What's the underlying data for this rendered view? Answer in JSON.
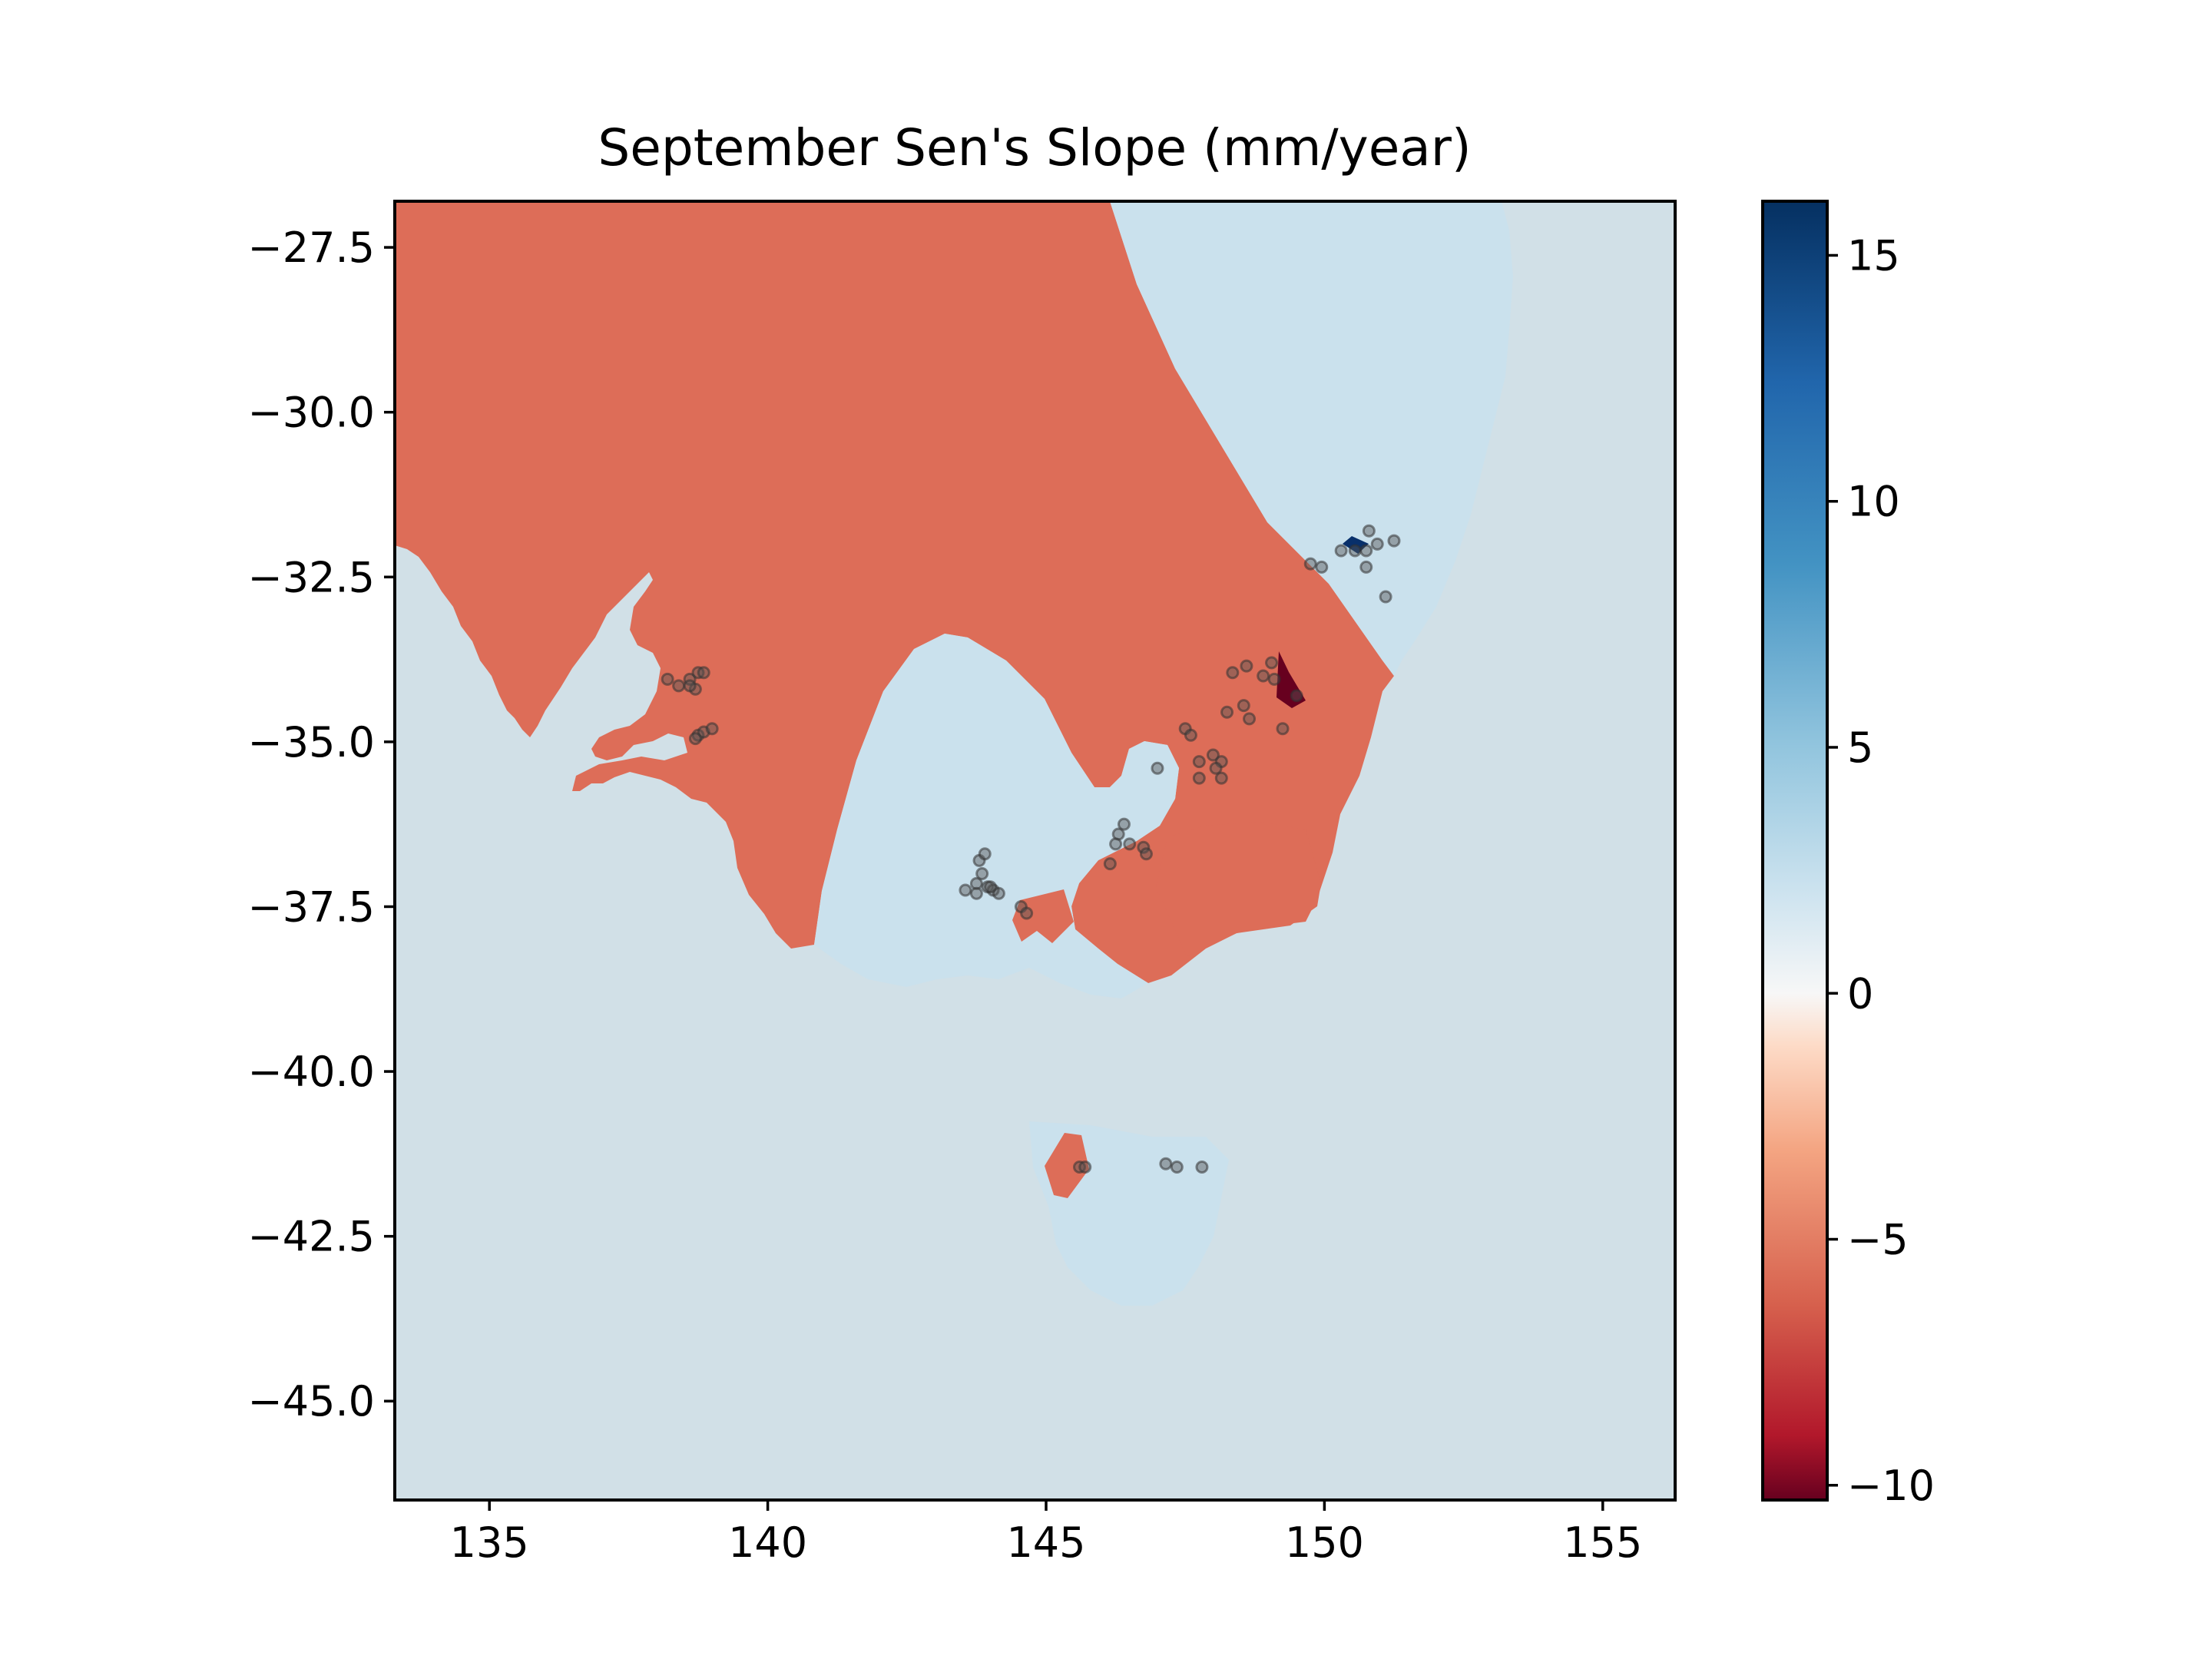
{
  "chart_data": {
    "type": "heatmap",
    "title": "September Sen's Slope (mm/year)",
    "xlabel": "",
    "ylabel": "",
    "xlim": [
      133.3,
      156.3
    ],
    "ylim": [
      -46.5,
      -26.8
    ],
    "xticks": [
      135,
      140,
      145,
      150,
      155
    ],
    "xtick_labels": [
      "135",
      "140",
      "145",
      "150",
      "155"
    ],
    "yticks": [
      -27.5,
      -30.0,
      -32.5,
      -35.0,
      -37.5,
      -40.0,
      -42.5,
      -45.0
    ],
    "ytick_labels": [
      "−27.5",
      "−30.0",
      "−32.5",
      "−35.0",
      "−37.5",
      "−40.0",
      "−42.5",
      "−45.0"
    ],
    "colorbar": {
      "colormap": "RdBu",
      "range": [
        -10.3,
        16.1
      ],
      "ticks": [
        15,
        10,
        5,
        0,
        -5,
        -10
      ],
      "tick_labels": [
        "15",
        "10",
        "5",
        "0",
        "−5",
        "−10"
      ]
    },
    "colors": {
      "ocean": "#d1e0e7",
      "positive_slope": "#cae1ed",
      "negative_slope": "#dd6d58",
      "strong_positive": "#08306b",
      "strong_negative": "#67001f",
      "station": "#555555"
    },
    "regions": [
      {
        "name": "negative-region-mainland",
        "value": -6.0
      },
      {
        "name": "positive-region-east-coast",
        "value": 3.5
      },
      {
        "name": "positive-region-victoria-bay",
        "value": 3.5
      },
      {
        "name": "negative-region-otway",
        "value": -6.0
      },
      {
        "name": "negative-region-gippsland",
        "value": -6.0
      },
      {
        "name": "negative-region-tasmania-nw",
        "value": -6.0
      },
      {
        "name": "strong-positive-cell-hunter",
        "value": 16.0
      },
      {
        "name": "strong-negative-cell-canberra",
        "value": -10.0
      }
    ],
    "stations": [
      {
        "lon": 138.2,
        "lat": -34.05
      },
      {
        "lon": 138.4,
        "lat": -34.15
      },
      {
        "lon": 138.6,
        "lat": -34.05
      },
      {
        "lon": 138.75,
        "lat": -33.95
      },
      {
        "lon": 138.85,
        "lat": -33.95
      },
      {
        "lon": 138.7,
        "lat": -34.2
      },
      {
        "lon": 138.6,
        "lat": -34.15
      },
      {
        "lon": 138.75,
        "lat": -34.9
      },
      {
        "lon": 138.85,
        "lat": -34.85
      },
      {
        "lon": 139.0,
        "lat": -34.8
      },
      {
        "lon": 138.7,
        "lat": -34.95
      },
      {
        "lon": 143.55,
        "lat": -37.25
      },
      {
        "lon": 143.75,
        "lat": -37.15
      },
      {
        "lon": 143.85,
        "lat": -37.0
      },
      {
        "lon": 143.8,
        "lat": -36.8
      },
      {
        "lon": 143.9,
        "lat": -36.7
      },
      {
        "lon": 143.95,
        "lat": -37.2
      },
      {
        "lon": 144.05,
        "lat": -37.25
      },
      {
        "lon": 144.15,
        "lat": -37.3
      },
      {
        "lon": 143.75,
        "lat": -37.3
      },
      {
        "lon": 144.0,
        "lat": -37.2
      },
      {
        "lon": 144.55,
        "lat": -37.5
      },
      {
        "lon": 144.65,
        "lat": -37.6
      },
      {
        "lon": 145.6,
        "lat": -41.45
      },
      {
        "lon": 145.7,
        "lat": -41.45
      },
      {
        "lon": 146.3,
        "lat": -36.4
      },
      {
        "lon": 146.4,
        "lat": -36.25
      },
      {
        "lon": 146.25,
        "lat": -36.55
      },
      {
        "lon": 146.5,
        "lat": -36.55
      },
      {
        "lon": 146.75,
        "lat": -36.6
      },
      {
        "lon": 146.8,
        "lat": -36.7
      },
      {
        "lon": 146.15,
        "lat": -36.85
      },
      {
        "lon": 147.0,
        "lat": -35.4
      },
      {
        "lon": 147.15,
        "lat": -41.4
      },
      {
        "lon": 147.35,
        "lat": -41.45
      },
      {
        "lon": 147.8,
        "lat": -41.45
      },
      {
        "lon": 147.5,
        "lat": -34.8
      },
      {
        "lon": 147.6,
        "lat": -34.9
      },
      {
        "lon": 147.75,
        "lat": -35.3
      },
      {
        "lon": 147.75,
        "lat": -35.55
      },
      {
        "lon": 148.0,
        "lat": -35.2
      },
      {
        "lon": 148.15,
        "lat": -35.3
      },
      {
        "lon": 148.15,
        "lat": -35.55
      },
      {
        "lon": 148.05,
        "lat": -35.4
      },
      {
        "lon": 148.25,
        "lat": -34.55
      },
      {
        "lon": 148.55,
        "lat": -34.45
      },
      {
        "lon": 148.65,
        "lat": -34.65
      },
      {
        "lon": 148.35,
        "lat": -33.95
      },
      {
        "lon": 148.6,
        "lat": -33.85
      },
      {
        "lon": 148.9,
        "lat": -34.0
      },
      {
        "lon": 149.05,
        "lat": -33.8
      },
      {
        "lon": 149.1,
        "lat": -34.05
      },
      {
        "lon": 149.25,
        "lat": -34.8
      },
      {
        "lon": 149.5,
        "lat": -34.3
      },
      {
        "lon": 149.75,
        "lat": -32.3
      },
      {
        "lon": 149.95,
        "lat": -32.35
      },
      {
        "lon": 150.3,
        "lat": -32.1
      },
      {
        "lon": 150.55,
        "lat": -32.1
      },
      {
        "lon": 150.8,
        "lat": -31.8
      },
      {
        "lon": 150.75,
        "lat": -32.1
      },
      {
        "lon": 150.95,
        "lat": -32.0
      },
      {
        "lon": 151.25,
        "lat": -31.95
      },
      {
        "lon": 150.75,
        "lat": -32.35
      },
      {
        "lon": 151.1,
        "lat": -32.8
      }
    ]
  }
}
